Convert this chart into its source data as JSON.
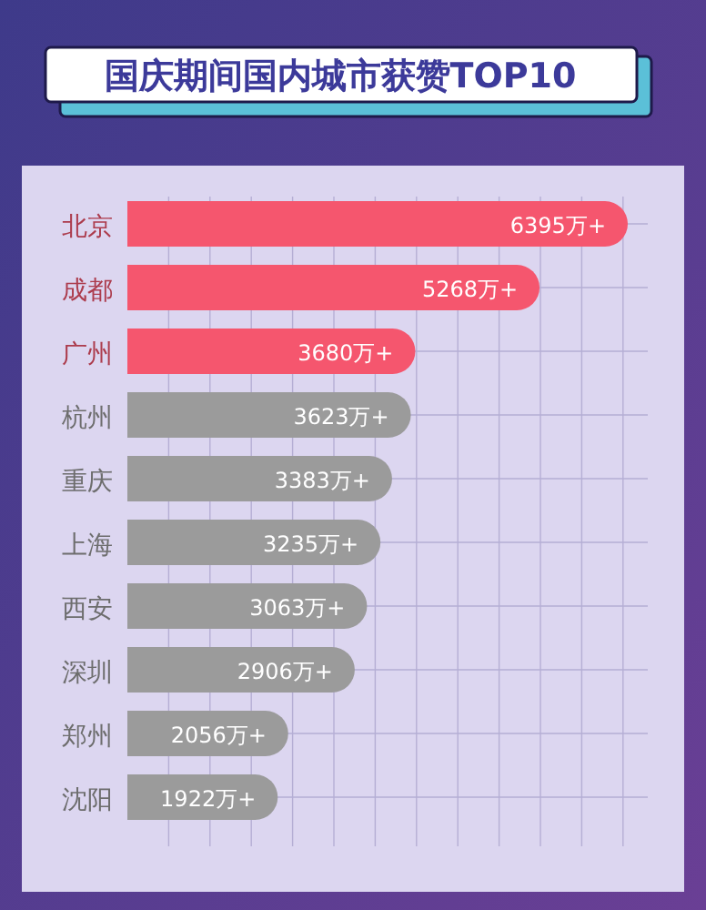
{
  "chart_data": {
    "type": "bar",
    "orientation": "horizontal",
    "title": "国庆期间国内城市获赞TOP10",
    "categories": [
      "北京",
      "成都",
      "广州",
      "杭州",
      "重庆",
      "上海",
      "西安",
      "深圳",
      "郑州",
      "沈阳"
    ],
    "values": [
      6395,
      5268,
      3680,
      3623,
      3383,
      3235,
      3063,
      2906,
      2056,
      1922
    ],
    "value_labels": [
      "6395万+",
      "5268万+",
      "3680万+",
      "3623万+",
      "3383万+",
      "3235万+",
      "3063万+",
      "2906万+",
      "2056万+",
      "1922万+"
    ],
    "colors": [
      "#f5566e",
      "#f5566e",
      "#f5566e",
      "#9b9b9b",
      "#9b9b9b",
      "#9b9b9b",
      "#9b9b9b",
      "#9b9b9b",
      "#9b9b9b",
      "#9b9b9b"
    ],
    "grid": true
  }
}
